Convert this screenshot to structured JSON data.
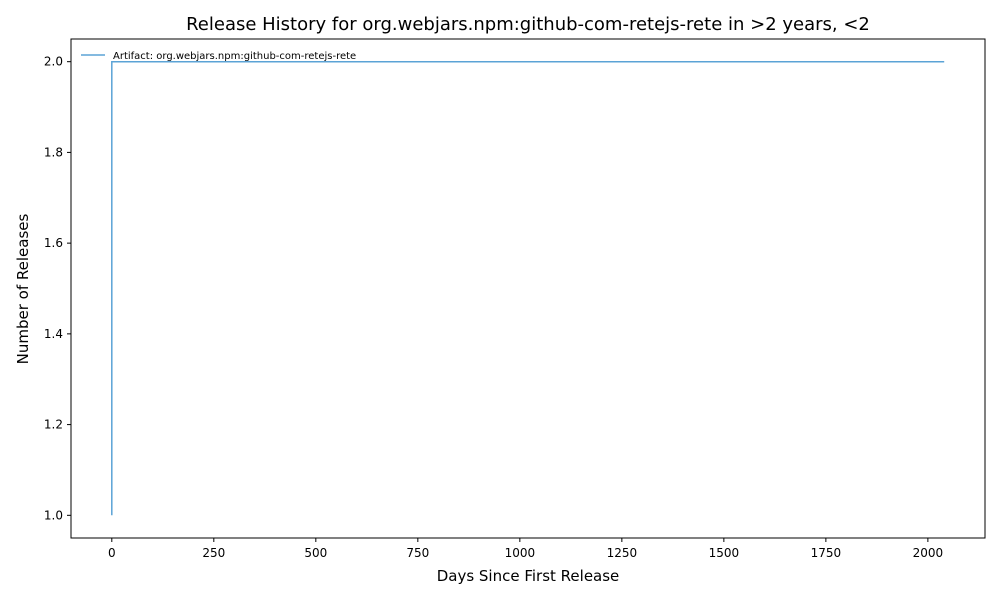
{
  "chart_data": {
    "type": "line",
    "title": "Release History for org.webjars.npm:github-com-retejs-rete in >2 years, <2",
    "xlabel": "Days Since First Release",
    "ylabel": "Number of Releases",
    "xlim": [
      -100,
      2140
    ],
    "ylim": [
      0.95,
      2.05
    ],
    "x_ticks": [
      0,
      250,
      500,
      750,
      1000,
      1250,
      1500,
      1750,
      2000
    ],
    "y_ticks": [
      1.0,
      1.2,
      1.4,
      1.6,
      1.8,
      2.0
    ],
    "x_tick_labels": [
      "0",
      "250",
      "500",
      "750",
      "1000",
      "1250",
      "1500",
      "1750",
      "2000"
    ],
    "y_tick_labels": [
      "1.0",
      "1.2",
      "1.4",
      "1.6",
      "1.8",
      "2.0"
    ],
    "grid": false,
    "legend_position": "top-left",
    "series": [
      {
        "name": "Artifact: org.webjars.npm:github-com-retejs-rete",
        "color": "#5ba3d6",
        "points": [
          [
            0,
            1
          ],
          [
            0,
            2
          ],
          [
            2040,
            2
          ]
        ]
      }
    ]
  }
}
